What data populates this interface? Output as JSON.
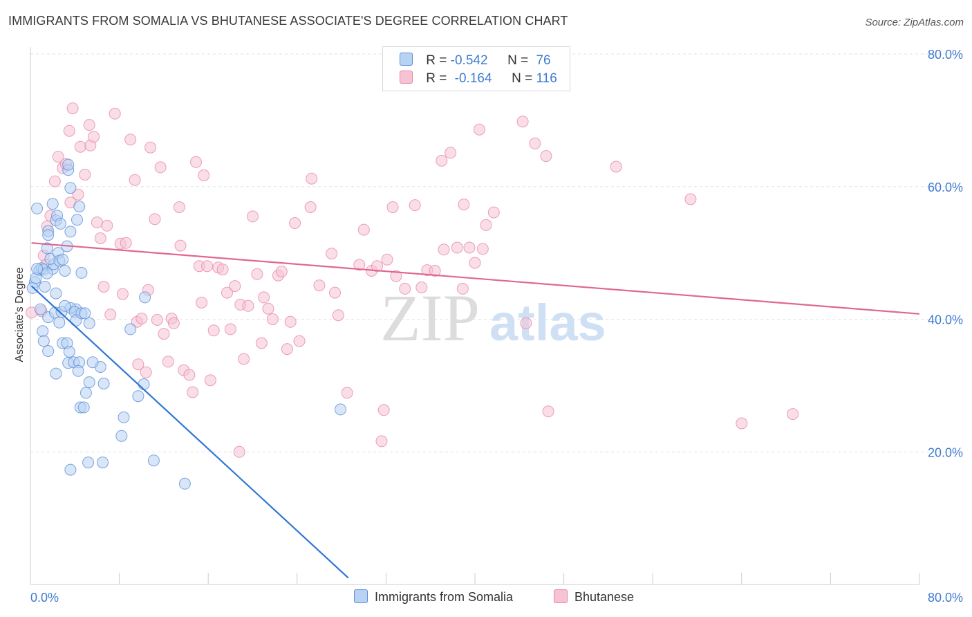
{
  "header": {
    "title": "IMMIGRANTS FROM SOMALIA VS BHUTANESE ASSOCIATE'S DEGREE CORRELATION CHART",
    "source": "Source: ZipAtlas.com"
  },
  "colors": {
    "somalia_fill": "#b8d2f3",
    "somalia_stroke": "#5b8fd8",
    "somalia_line": "#2e76d4",
    "bhutanese_fill": "#f6c3d3",
    "bhutanese_stroke": "#e887a6",
    "bhutanese_line": "#e0678f",
    "axis_text": "#3e7bd0",
    "grid": "#e2e2e2"
  },
  "legend": {
    "rows": [
      {
        "r_label": "R = ",
        "r_value": "-0.542",
        "n_label": "N = ",
        "n_value": "76"
      },
      {
        "r_label": "R = ",
        "r_value": "-0.164",
        "n_label": "N = ",
        "n_value": "116"
      }
    ]
  },
  "watermark": {
    "zip": "ZIP",
    "atlas": "atlas"
  },
  "chart_data": {
    "type": "scatter",
    "xlabel": "",
    "ylabel": "Associate's Degree",
    "xlim": [
      0,
      80
    ],
    "ylim": [
      0,
      80
    ],
    "x_tick_labels": [
      "0.0%",
      "80.0%"
    ],
    "y_ticks": [
      20,
      40,
      60,
      80
    ],
    "y_tick_labels": [
      "20.0%",
      "40.0%",
      "60.0%",
      "80.0%"
    ],
    "grid": "horizontal dashed",
    "legend_placement": "bottom",
    "series": [
      {
        "name": "Immigrants from Somalia",
        "r": -0.542,
        "n": 76,
        "trend": {
          "x": [
            0.1,
            28.6
          ],
          "y": [
            45.0,
            1.0
          ]
        },
        "points": [
          [
            0.6,
            56.7
          ],
          [
            0.4,
            45.6
          ],
          [
            0.2,
            44.7
          ],
          [
            0.8,
            47.4
          ],
          [
            0.5,
            46.2
          ],
          [
            1.0,
            47.7
          ],
          [
            1.2,
            47.5
          ],
          [
            1.3,
            44.9
          ],
          [
            0.9,
            41.5
          ],
          [
            1.1,
            38.2
          ],
          [
            1.2,
            36.7
          ],
          [
            1.6,
            35.2
          ],
          [
            1.6,
            40.3
          ],
          [
            1.5,
            50.7
          ],
          [
            1.6,
            53.3
          ],
          [
            1.6,
            52.7
          ],
          [
            2.0,
            47.6
          ],
          [
            2.1,
            48.3
          ],
          [
            1.8,
            49.1
          ],
          [
            2.3,
            54.9
          ],
          [
            2.0,
            57.4
          ],
          [
            2.4,
            55.6
          ],
          [
            2.7,
            54.4
          ],
          [
            2.2,
            41.0
          ],
          [
            2.3,
            43.9
          ],
          [
            2.6,
            39.5
          ],
          [
            2.8,
            41.1
          ],
          [
            2.5,
            50.0
          ],
          [
            2.6,
            48.8
          ],
          [
            2.9,
            49.0
          ],
          [
            3.3,
            51.0
          ],
          [
            3.6,
            53.2
          ],
          [
            3.1,
            47.3
          ],
          [
            2.9,
            36.4
          ],
          [
            3.3,
            36.4
          ],
          [
            3.5,
            35.1
          ],
          [
            3.4,
            33.4
          ],
          [
            3.9,
            33.5
          ],
          [
            4.4,
            33.5
          ],
          [
            4.3,
            32.2
          ],
          [
            2.3,
            31.8
          ],
          [
            3.4,
            62.5
          ],
          [
            3.6,
            59.8
          ],
          [
            3.4,
            63.3
          ],
          [
            4.2,
            55.0
          ],
          [
            4.4,
            57.0
          ],
          [
            4.6,
            47.0
          ],
          [
            4.1,
            41.5
          ],
          [
            3.6,
            41.7
          ],
          [
            4.0,
            41.1
          ],
          [
            4.1,
            39.8
          ],
          [
            4.6,
            40.9
          ],
          [
            4.9,
            40.9
          ],
          [
            5.3,
            39.4
          ],
          [
            5.0,
            28.9
          ],
          [
            4.5,
            26.7
          ],
          [
            4.8,
            26.7
          ],
          [
            5.3,
            30.5
          ],
          [
            6.3,
            32.8
          ],
          [
            6.6,
            30.3
          ],
          [
            6.5,
            18.4
          ],
          [
            5.2,
            18.4
          ],
          [
            3.6,
            17.3
          ],
          [
            8.4,
            25.2
          ],
          [
            8.2,
            22.4
          ],
          [
            9.0,
            38.5
          ],
          [
            9.7,
            28.4
          ],
          [
            10.2,
            30.2
          ],
          [
            10.3,
            43.3
          ],
          [
            11.1,
            18.7
          ],
          [
            13.9,
            15.2
          ],
          [
            27.9,
            26.4
          ],
          [
            0.6,
            47.6
          ],
          [
            1.5,
            46.9
          ],
          [
            3.1,
            42.0
          ],
          [
            5.6,
            33.5
          ]
        ]
      },
      {
        "name": "Bhutanese",
        "r": -0.164,
        "n": 116,
        "trend": {
          "x": [
            0.1,
            80
          ],
          "y": [
            51.5,
            40.8
          ]
        },
        "points": [
          [
            0.1,
            41.0
          ],
          [
            1.2,
            49.6
          ],
          [
            1.4,
            48.2
          ],
          [
            1.5,
            54.0
          ],
          [
            1.8,
            55.6
          ],
          [
            2.2,
            60.8
          ],
          [
            2.5,
            64.5
          ],
          [
            2.9,
            62.8
          ],
          [
            3.2,
            63.4
          ],
          [
            3.6,
            57.6
          ],
          [
            3.5,
            68.4
          ],
          [
            3.8,
            71.8
          ],
          [
            4.3,
            58.8
          ],
          [
            4.5,
            66.0
          ],
          [
            4.9,
            61.8
          ],
          [
            5.3,
            69.3
          ],
          [
            5.4,
            66.2
          ],
          [
            5.7,
            67.5
          ],
          [
            6.0,
            54.6
          ],
          [
            6.3,
            52.2
          ],
          [
            6.6,
            44.9
          ],
          [
            6.9,
            54.1
          ],
          [
            7.2,
            40.7
          ],
          [
            7.6,
            71.0
          ],
          [
            8.1,
            51.4
          ],
          [
            8.3,
            43.8
          ],
          [
            8.6,
            51.5
          ],
          [
            9.0,
            67.1
          ],
          [
            9.4,
            61.0
          ],
          [
            9.6,
            39.6
          ],
          [
            9.7,
            33.2
          ],
          [
            10.0,
            40.1
          ],
          [
            10.4,
            32.0
          ],
          [
            10.6,
            44.4
          ],
          [
            10.8,
            65.9
          ],
          [
            11.2,
            55.1
          ],
          [
            11.4,
            39.9
          ],
          [
            11.7,
            62.9
          ],
          [
            12.0,
            37.8
          ],
          [
            12.4,
            33.6
          ],
          [
            12.7,
            40.1
          ],
          [
            12.9,
            39.4
          ],
          [
            13.4,
            56.9
          ],
          [
            13.5,
            51.1
          ],
          [
            13.8,
            32.3
          ],
          [
            14.3,
            31.6
          ],
          [
            14.6,
            29.0
          ],
          [
            14.9,
            63.7
          ],
          [
            15.2,
            48.0
          ],
          [
            15.4,
            42.5
          ],
          [
            15.6,
            61.7
          ],
          [
            15.9,
            48.0
          ],
          [
            16.2,
            30.8
          ],
          [
            16.5,
            38.3
          ],
          [
            16.9,
            47.8
          ],
          [
            17.3,
            47.5
          ],
          [
            17.7,
            44.0
          ],
          [
            18.0,
            38.5
          ],
          [
            18.4,
            45.0
          ],
          [
            18.8,
            20.0
          ],
          [
            18.9,
            42.2
          ],
          [
            19.2,
            34.0
          ],
          [
            19.6,
            42.0
          ],
          [
            20.0,
            55.5
          ],
          [
            20.4,
            46.8
          ],
          [
            20.8,
            36.4
          ],
          [
            21.0,
            43.3
          ],
          [
            21.4,
            41.6
          ],
          [
            21.8,
            40.0
          ],
          [
            22.3,
            46.6
          ],
          [
            22.6,
            47.2
          ],
          [
            23.1,
            35.5
          ],
          [
            23.4,
            39.6
          ],
          [
            23.8,
            54.5
          ],
          [
            24.2,
            36.7
          ],
          [
            25.2,
            56.9
          ],
          [
            25.3,
            61.2
          ],
          [
            26.0,
            45.1
          ],
          [
            27.1,
            49.9
          ],
          [
            27.4,
            44.0
          ],
          [
            27.7,
            40.6
          ],
          [
            28.5,
            28.9
          ],
          [
            29.6,
            48.2
          ],
          [
            30.0,
            53.5
          ],
          [
            30.7,
            47.3
          ],
          [
            31.2,
            48.0
          ],
          [
            31.6,
            21.6
          ],
          [
            31.8,
            26.3
          ],
          [
            32.1,
            49.0
          ],
          [
            32.6,
            56.9
          ],
          [
            32.9,
            46.5
          ],
          [
            33.7,
            44.6
          ],
          [
            34.6,
            57.2
          ],
          [
            35.2,
            44.8
          ],
          [
            35.7,
            47.4
          ],
          [
            36.4,
            47.3
          ],
          [
            37.0,
            63.9
          ],
          [
            37.2,
            50.5
          ],
          [
            37.8,
            65.1
          ],
          [
            38.4,
            50.8
          ],
          [
            38.9,
            44.6
          ],
          [
            39.0,
            57.3
          ],
          [
            39.5,
            50.8
          ],
          [
            40.0,
            48.5
          ],
          [
            40.4,
            68.6
          ],
          [
            40.7,
            50.6
          ],
          [
            41.0,
            54.2
          ],
          [
            41.7,
            56.1
          ],
          [
            44.3,
            69.8
          ],
          [
            44.6,
            39.4
          ],
          [
            45.4,
            66.5
          ],
          [
            46.4,
            64.6
          ],
          [
            46.6,
            26.1
          ],
          [
            52.7,
            63.0
          ],
          [
            59.4,
            58.1
          ],
          [
            64.0,
            24.3
          ],
          [
            68.6,
            25.7
          ],
          [
            1.0,
            41.2
          ]
        ]
      }
    ]
  },
  "bottom_legend": {
    "items": [
      {
        "label": "Immigrants from Somalia"
      },
      {
        "label": "Bhutanese"
      }
    ]
  }
}
